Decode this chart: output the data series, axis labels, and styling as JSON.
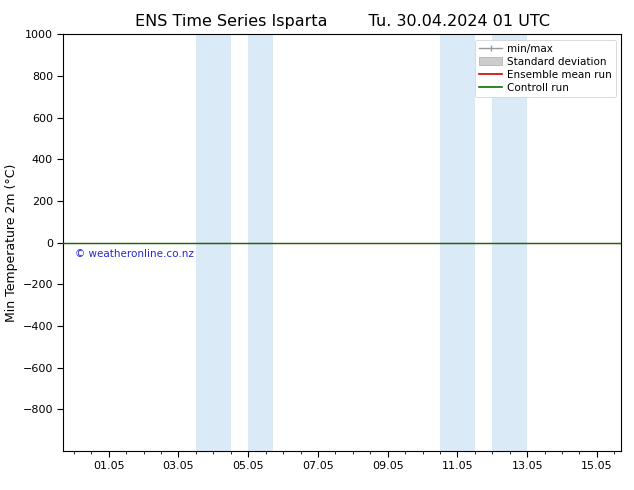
{
  "title_left": "ENS Time Series Isparta",
  "title_right": "Tu. 30.04.2024 01 UTC",
  "ylabel": "Min Temperature 2m (°C)",
  "ylim_top": -1000,
  "ylim_bottom": 1000,
  "yticks": [
    -800,
    -600,
    -400,
    -200,
    0,
    200,
    400,
    600,
    800,
    1000
  ],
  "x_tick_labels": [
    "01.05",
    "03.05",
    "05.05",
    "07.05",
    "09.05",
    "11.05",
    "13.05",
    "15.05"
  ],
  "x_tick_positions": [
    1,
    3,
    5,
    7,
    9,
    11,
    13,
    15
  ],
  "xlim": [
    -0.3,
    15.7
  ],
  "shaded_regions": [
    {
      "x_start": 3.5,
      "x_end": 4.5,
      "color": "#daeaf7"
    },
    {
      "x_start": 5.0,
      "x_end": 5.7,
      "color": "#daeaf7"
    },
    {
      "x_start": 10.5,
      "x_end": 11.5,
      "color": "#daeaf7"
    },
    {
      "x_start": 12.0,
      "x_end": 13.0,
      "color": "#daeaf7"
    }
  ],
  "control_run_color": "#007700",
  "ensemble_mean_color": "#cc0000",
  "legend_labels": [
    "min/max",
    "Standard deviation",
    "Ensemble mean run",
    "Controll run"
  ],
  "watermark": "© weatheronline.co.nz",
  "watermark_color": "#0000cc",
  "background_color": "#ffffff",
  "title_fontsize": 11.5,
  "axis_label_fontsize": 9,
  "tick_fontsize": 8,
  "legend_fontsize": 7.5
}
